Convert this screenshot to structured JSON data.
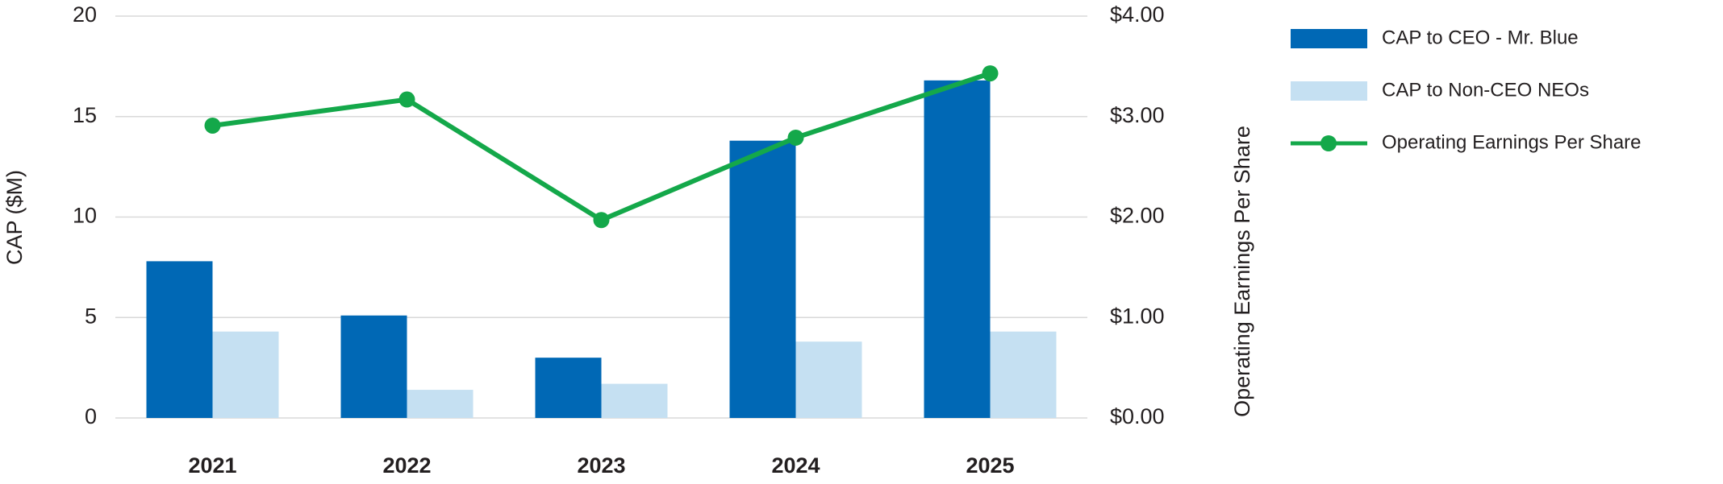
{
  "chart_data": {
    "type": "bar",
    "categories": [
      "2021",
      "2022",
      "2023",
      "2024",
      "2025"
    ],
    "y_label": "CAP ($M)",
    "y2_label": "Operating Earnings Per Share",
    "ylim": [
      0,
      20
    ],
    "yticks": [
      0,
      5,
      10,
      15,
      20
    ],
    "y2lim": [
      0,
      4
    ],
    "y2ticks": [
      {
        "value": 0,
        "label": "$0.00"
      },
      {
        "value": 1,
        "label": "$1.00"
      },
      {
        "value": 2,
        "label": "$2.00"
      },
      {
        "value": 3,
        "label": "$3.00"
      },
      {
        "value": 4,
        "label": "$4.00"
      }
    ],
    "grid": true,
    "legend": "right",
    "series": [
      {
        "name": "CAP to CEO - Mr. Blue",
        "type": "bar",
        "color": "#0068b5",
        "values": [
          7.8,
          5.1,
          3.0,
          13.8,
          16.8
        ]
      },
      {
        "name": "CAP to Non-CEO NEOs",
        "type": "bar",
        "color": "#c5e0f2",
        "values": [
          4.3,
          1.4,
          1.7,
          3.8,
          4.3
        ]
      },
      {
        "name": "Operating Earnings Per Share",
        "type": "line",
        "axis": "y2",
        "color": "#14a84a",
        "values": [
          2.91,
          3.17,
          1.97,
          2.79,
          3.43
        ]
      }
    ]
  }
}
